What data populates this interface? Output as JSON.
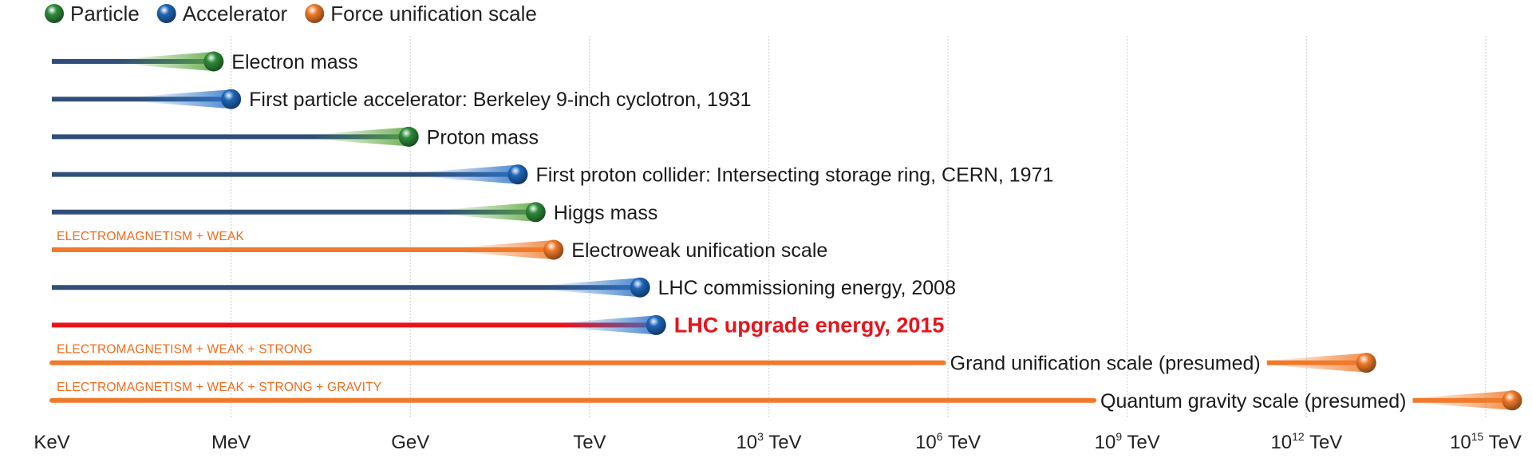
{
  "chart_data": {
    "type": "bar",
    "orientation": "horizontal",
    "x_scale": "log10",
    "x_unit": "eV",
    "x_ticks": [
      {
        "label": "KeV",
        "value": 1000.0
      },
      {
        "label": "MeV",
        "value": 1000000.0
      },
      {
        "label": "GeV",
        "value": 1000000000.0
      },
      {
        "label": "TeV",
        "value": 1000000000000.0
      },
      {
        "label": "10",
        "sup": "3",
        "suffix": " TeV",
        "value": 1000000000000000.0
      },
      {
        "label": "10",
        "sup": "6",
        "suffix": " TeV",
        "value": 1e+18
      },
      {
        "label": "10",
        "sup": "9",
        "suffix": " TeV",
        "value": 1e+21
      },
      {
        "label": "10",
        "sup": "12",
        "suffix": " TeV",
        "value": 1e+24
      },
      {
        "label": "10",
        "sup": "15",
        "suffix": " TeV",
        "value": 1e+27
      }
    ],
    "xlim": [
      1000.0,
      1e+27
    ],
    "grid": "vertical-dashed",
    "legend_position": "top-left",
    "legend": [
      {
        "key": "particle",
        "label": "Particle",
        "color": "#2e8b3a"
      },
      {
        "key": "accelerator",
        "label": "Accelerator",
        "color": "#1f66b8"
      },
      {
        "key": "force",
        "label": "Force unification scale",
        "color": "#f07a2a"
      }
    ],
    "bars": [
      {
        "label": "Electron mass",
        "category": "particle",
        "value": 511000.0
      },
      {
        "label": "First particle accelerator: Berkeley 9-inch cyclotron, 1931",
        "category": "accelerator",
        "value": 1000000.0
      },
      {
        "label": "Proton mass",
        "category": "particle",
        "value": 938000000.0
      },
      {
        "label": "First proton collider: Intersecting storage ring, CERN, 1971",
        "category": "accelerator",
        "value": 63000000000.0
      },
      {
        "label": "Higgs mass",
        "category": "particle",
        "value": 125000000000.0
      },
      {
        "label": "Electroweak unification scale",
        "category": "force",
        "value": 250000000000.0,
        "group_label": "ELECTROMAGNETISM + WEAK"
      },
      {
        "label": "LHC commissioning energy, 2008",
        "category": "accelerator",
        "value": 7000000000000.0
      },
      {
        "label": "LHC upgrade energy, 2015",
        "category": "accelerator",
        "value": 13000000000000.0,
        "highlight": true,
        "line_color": "#e8141c"
      },
      {
        "label": "Grand unification scale (presumed)",
        "category": "force",
        "value": 1e+25,
        "group_label": "ELECTROMAGNETISM + WEAK + STRONG",
        "label_inline": true
      },
      {
        "label": "Quantum gravity scale (presumed)",
        "category": "force",
        "value": 1.2e+28,
        "group_label": "ELECTROMAGNETISM + WEAK + STRONG + GRAVITY",
        "label_inline": true
      }
    ]
  }
}
